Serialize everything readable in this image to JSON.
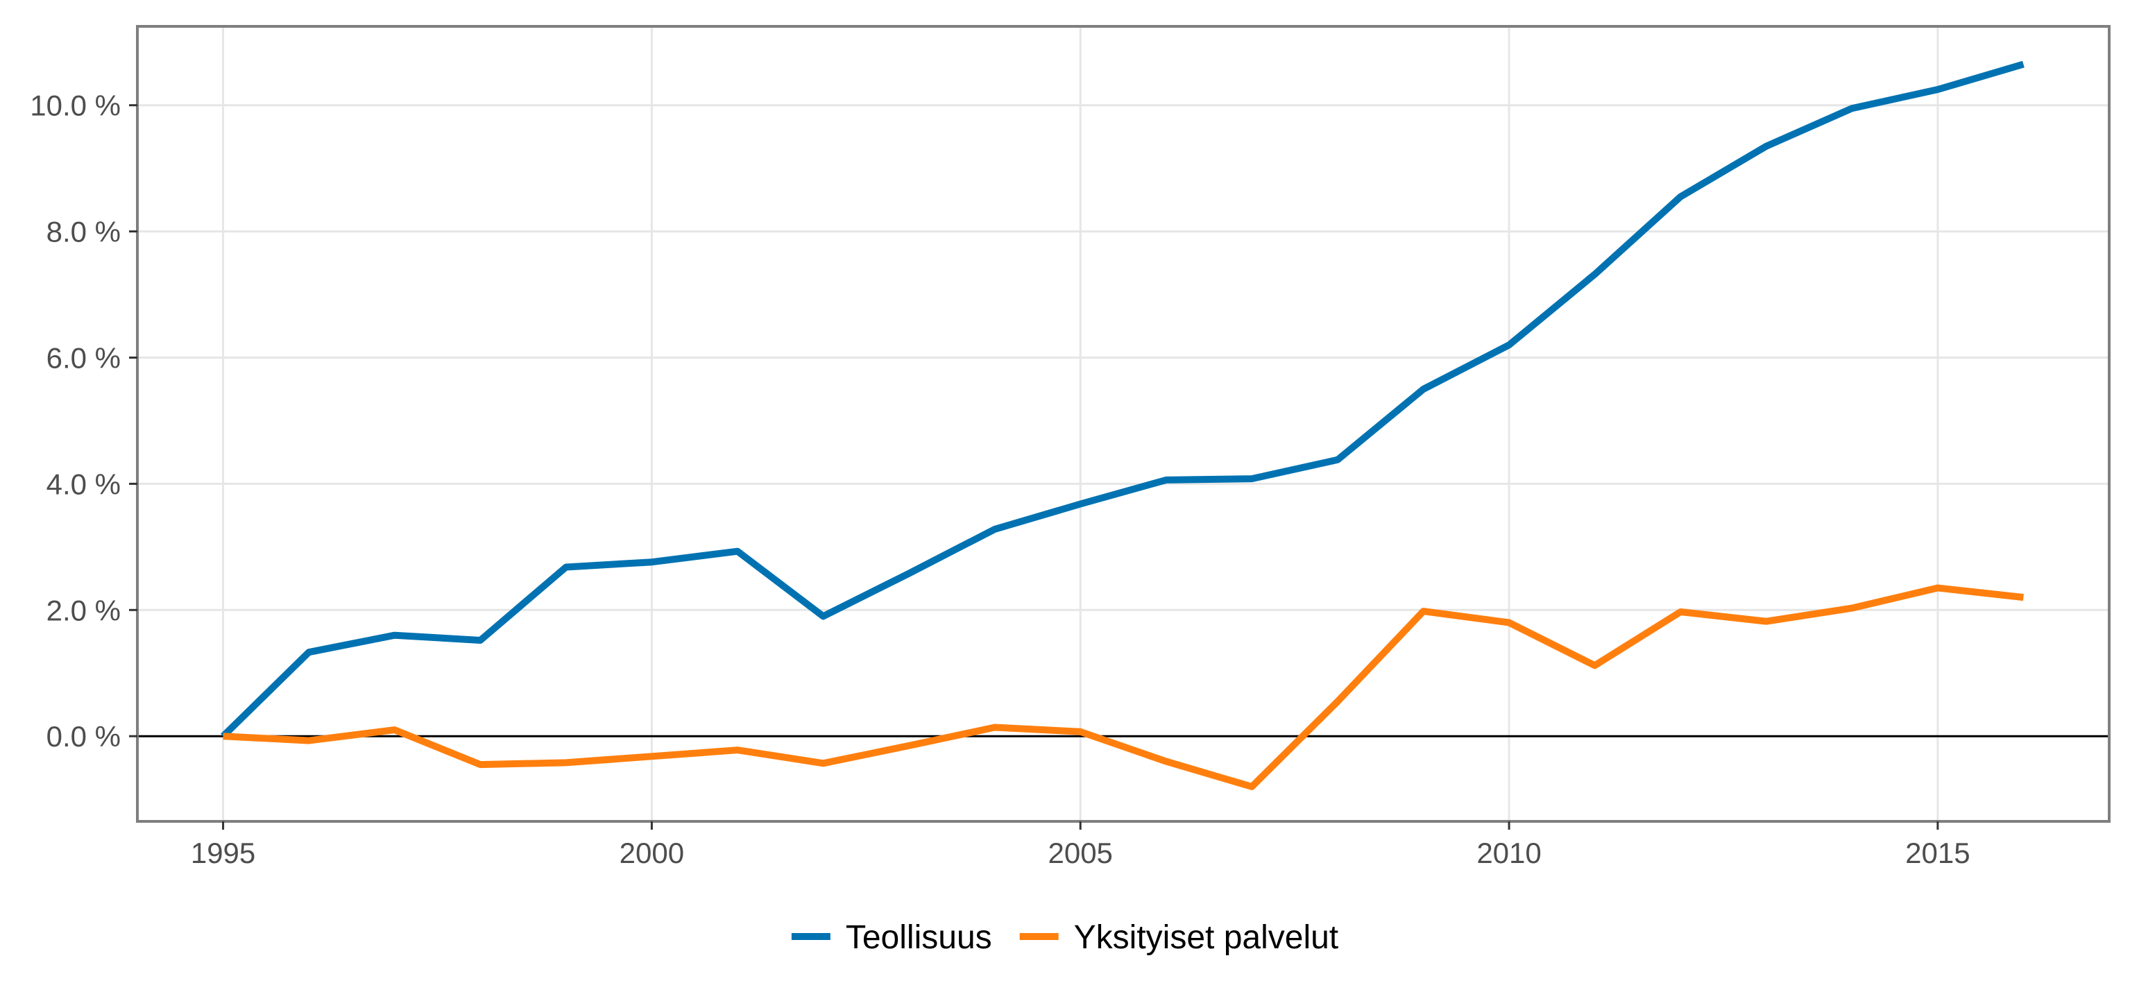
{
  "chart_data": {
    "type": "line",
    "title": "",
    "xlabel": "",
    "ylabel": "",
    "x": [
      1995,
      1996,
      1997,
      1998,
      1999,
      2000,
      2001,
      2002,
      2003,
      2004,
      2005,
      2006,
      2007,
      2008,
      2009,
      2010,
      2011,
      2012,
      2013,
      2014,
      2015,
      2016
    ],
    "xlim": [
      1994,
      2017
    ],
    "ylim": [
      -1.35,
      11.25
    ],
    "x_ticks": [
      1995,
      2000,
      2005,
      2010,
      2015
    ],
    "x_tick_labels": [
      "1995",
      "2000",
      "2005",
      "2010",
      "2015"
    ],
    "y_ticks": [
      0,
      2,
      4,
      6,
      8,
      10
    ],
    "y_tick_labels": [
      "0.0 %",
      "2.0 %",
      "4.0 %",
      "6.0 %",
      "8.0 %",
      "10.0 %"
    ],
    "y_unit": "%",
    "reference_line": 0,
    "grid": true,
    "legend_position": "bottom",
    "series": [
      {
        "name": "Teollisuus",
        "color": "#0072B2",
        "values": [
          0.0,
          1.33,
          1.6,
          1.52,
          2.68,
          2.76,
          2.93,
          1.9,
          2.58,
          3.28,
          3.68,
          4.06,
          4.08,
          4.38,
          5.5,
          6.2,
          7.32,
          8.55,
          9.35,
          9.95,
          10.25,
          10.65
        ]
      },
      {
        "name": "Yksityiset palvelut",
        "color": "#FF7F0E",
        "values": [
          0.0,
          -0.07,
          0.1,
          -0.45,
          -0.42,
          -0.32,
          -0.22,
          -0.43,
          -0.15,
          0.14,
          0.07,
          -0.4,
          -0.8,
          0.55,
          1.98,
          1.8,
          1.12,
          1.97,
          1.82,
          2.03,
          2.35,
          2.2
        ]
      }
    ]
  }
}
